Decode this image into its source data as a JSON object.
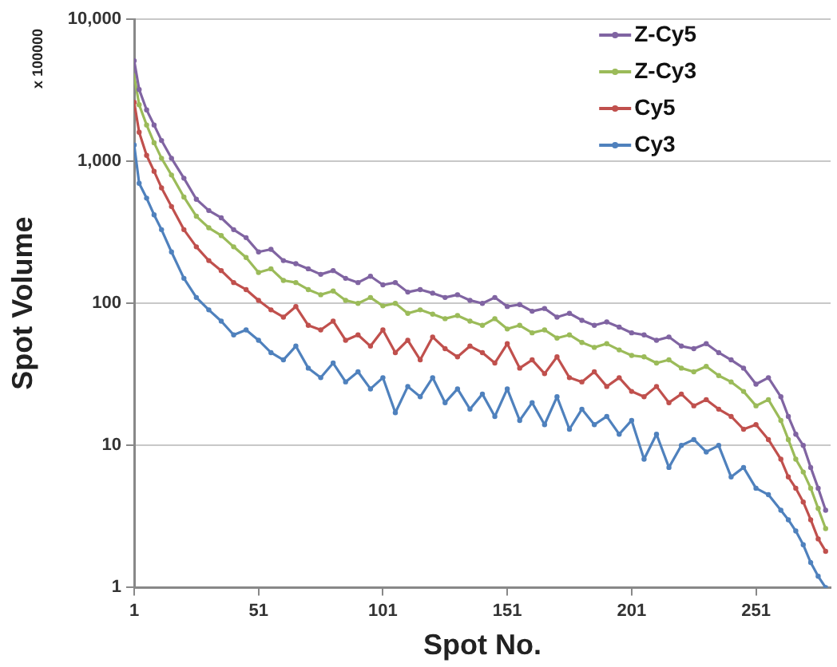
{
  "chart_data": {
    "type": "line",
    "xlabel": "Spot No.",
    "ylabel": "Spot Volume",
    "annotations": [
      "x 100000"
    ],
    "x": [
      1,
      3,
      6,
      9,
      12,
      16,
      21,
      26,
      31,
      36,
      41,
      46,
      51,
      56,
      61,
      66,
      71,
      76,
      81,
      86,
      91,
      96,
      101,
      106,
      111,
      116,
      121,
      126,
      131,
      136,
      141,
      146,
      151,
      156,
      161,
      166,
      171,
      176,
      181,
      186,
      191,
      196,
      201,
      206,
      211,
      216,
      221,
      226,
      231,
      236,
      241,
      246,
      251,
      256,
      261,
      264,
      267,
      270,
      273,
      276,
      279
    ],
    "series": [
      {
        "name": "Z-Cy5",
        "color": "#8064a2",
        "values": [
          5100,
          3200,
          2300,
          1800,
          1400,
          1050,
          760,
          540,
          450,
          400,
          330,
          290,
          230,
          240,
          200,
          190,
          175,
          160,
          170,
          150,
          140,
          155,
          135,
          140,
          120,
          125,
          118,
          110,
          115,
          105,
          100,
          110,
          95,
          98,
          88,
          92,
          80,
          85,
          76,
          70,
          74,
          68,
          62,
          60,
          55,
          58,
          50,
          48,
          52,
          45,
          40,
          35,
          27,
          30,
          22,
          16,
          12,
          10,
          7,
          5,
          3.5
        ]
      },
      {
        "name": "Z-Cy3",
        "color": "#9bbb59",
        "values": [
          4000,
          2500,
          1800,
          1350,
          1050,
          800,
          560,
          410,
          340,
          300,
          250,
          210,
          165,
          175,
          145,
          140,
          125,
          115,
          122,
          105,
          100,
          110,
          96,
          100,
          85,
          90,
          84,
          78,
          82,
          75,
          70,
          78,
          66,
          70,
          62,
          65,
          57,
          60,
          53,
          49,
          52,
          47,
          43,
          42,
          38,
          40,
          35,
          33,
          36,
          31,
          28,
          24,
          19,
          21,
          15,
          11,
          8,
          6.5,
          5,
          3.6,
          2.6
        ]
      },
      {
        "name": "Cy5",
        "color": "#c0504d",
        "values": [
          2600,
          1600,
          1100,
          850,
          650,
          480,
          330,
          250,
          200,
          170,
          140,
          125,
          105,
          90,
          80,
          95,
          70,
          65,
          75,
          55,
          60,
          50,
          65,
          45,
          55,
          40,
          58,
          48,
          42,
          50,
          45,
          38,
          52,
          35,
          40,
          32,
          42,
          30,
          28,
          33,
          26,
          30,
          24,
          22,
          26,
          20,
          23,
          19,
          21,
          18,
          16,
          13,
          14,
          11,
          8,
          6,
          5,
          4,
          3,
          2.2,
          1.8
        ]
      },
      {
        "name": "Cy3",
        "color": "#4f81bd",
        "values": [
          1300,
          700,
          550,
          420,
          330,
          230,
          150,
          110,
          90,
          75,
          60,
          65,
          55,
          45,
          40,
          50,
          35,
          30,
          38,
          28,
          33,
          25,
          30,
          17,
          26,
          22,
          30,
          20,
          25,
          18,
          23,
          16,
          25,
          15,
          20,
          14,
          22,
          13,
          18,
          14,
          16,
          12,
          15,
          8,
          12,
          7,
          10,
          11,
          9,
          10,
          6,
          7,
          5,
          4.5,
          3.5,
          3,
          2.5,
          2,
          1.5,
          1.2,
          1
        ]
      }
    ],
    "xlim": [
      1,
      281
    ],
    "xticks": [
      1,
      51,
      101,
      151,
      201,
      251
    ],
    "ylim": [
      1,
      10000
    ],
    "yticks": [
      1,
      10,
      100,
      {
        "value": 1000,
        "label": "1,000"
      },
      {
        "value": 10000,
        "label": "10,000"
      }
    ],
    "log": "y",
    "grid": "y",
    "legend": "top right",
    "marker": "circle",
    "line_style": "solid"
  }
}
